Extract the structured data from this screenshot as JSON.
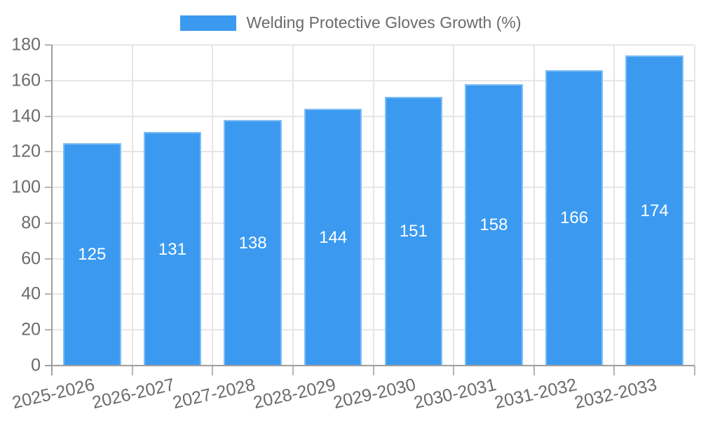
{
  "chart_data": {
    "type": "bar",
    "title": "Welding Protective Gloves Growth (%)",
    "categories": [
      "2025-2026",
      "2026-2027",
      "2027-2028",
      "2028-2029",
      "2029-2030",
      "2030-2031",
      "2031-2032",
      "2032-2033"
    ],
    "values": [
      125,
      131,
      138,
      144,
      151,
      158,
      166,
      174
    ],
    "xlabel": "",
    "ylabel": "",
    "ylim": [
      0,
      180
    ],
    "yticks": [
      0,
      20,
      40,
      60,
      80,
      100,
      120,
      140,
      160,
      180
    ],
    "grid": true,
    "legend_position": "top-center",
    "value_labels_position": "center-inside",
    "colors": {
      "bar": "#3b9af0",
      "grid": "#e6e6e6",
      "axis": "#9e9e9e",
      "tick": "#b5b5b5",
      "text": "#6b6b6b",
      "value_label": "#ffffff",
      "background": "#ffffff"
    }
  }
}
